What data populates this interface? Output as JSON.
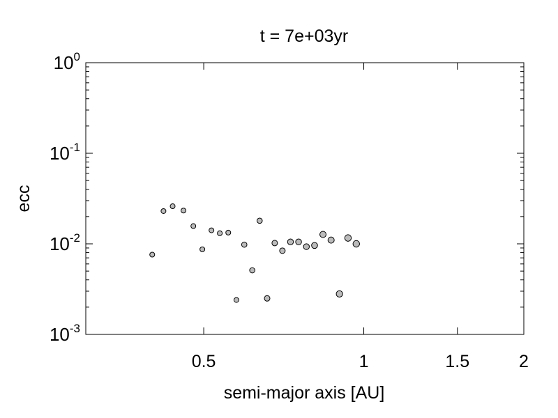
{
  "chart_data": {
    "type": "scatter",
    "title": "t = 7e+03yr",
    "xlabel": "semi-major axis [AU]",
    "ylabel": "ecc",
    "x_scale": "log",
    "y_scale": "log",
    "xlim": [
      0.3,
      2.0
    ],
    "ylim": [
      0.001,
      1.0
    ],
    "x_ticks": [
      {
        "value": 0.5,
        "label": "0.5"
      },
      {
        "value": 1,
        "label": "1"
      },
      {
        "value": 1.5,
        "label": "1.5"
      },
      {
        "value": 2,
        "label": "2"
      }
    ],
    "y_ticks": [
      {
        "value": 0.001,
        "base": "10",
        "exp": "-3"
      },
      {
        "value": 0.01,
        "base": "10",
        "exp": "-2"
      },
      {
        "value": 0.1,
        "base": "10",
        "exp": "-1"
      },
      {
        "value": 1,
        "base": "10",
        "exp": "0"
      }
    ],
    "marker_color": "#bbbbbb",
    "marker_edge": "#000000",
    "grid": false,
    "points": [
      {
        "x": 0.4,
        "y": 0.0076,
        "s": 3.5
      },
      {
        "x": 0.42,
        "y": 0.023,
        "s": 3.5
      },
      {
        "x": 0.437,
        "y": 0.026,
        "s": 3.5
      },
      {
        "x": 0.458,
        "y": 0.0233,
        "s": 3.5
      },
      {
        "x": 0.478,
        "y": 0.0157,
        "s": 3.5
      },
      {
        "x": 0.497,
        "y": 0.0087,
        "s": 3.5
      },
      {
        "x": 0.517,
        "y": 0.0141,
        "s": 3.5
      },
      {
        "x": 0.536,
        "y": 0.0131,
        "s": 3.5
      },
      {
        "x": 0.556,
        "y": 0.0133,
        "s": 3.5
      },
      {
        "x": 0.576,
        "y": 0.0024,
        "s": 3.5
      },
      {
        "x": 0.596,
        "y": 0.0098,
        "s": 3.8
      },
      {
        "x": 0.617,
        "y": 0.0051,
        "s": 3.8
      },
      {
        "x": 0.637,
        "y": 0.018,
        "s": 3.8
      },
      {
        "x": 0.658,
        "y": 0.0025,
        "s": 4.0
      },
      {
        "x": 0.68,
        "y": 0.0102,
        "s": 4.0
      },
      {
        "x": 0.703,
        "y": 0.0084,
        "s": 4.0
      },
      {
        "x": 0.728,
        "y": 0.0105,
        "s": 4.2
      },
      {
        "x": 0.754,
        "y": 0.0105,
        "s": 4.2
      },
      {
        "x": 0.78,
        "y": 0.0093,
        "s": 4.2
      },
      {
        "x": 0.808,
        "y": 0.0096,
        "s": 4.3
      },
      {
        "x": 0.838,
        "y": 0.0127,
        "s": 4.5
      },
      {
        "x": 0.868,
        "y": 0.011,
        "s": 4.5
      },
      {
        "x": 0.9,
        "y": 0.0028,
        "s": 4.6
      },
      {
        "x": 0.934,
        "y": 0.0116,
        "s": 4.7
      },
      {
        "x": 0.968,
        "y": 0.01,
        "s": 4.7
      }
    ]
  }
}
